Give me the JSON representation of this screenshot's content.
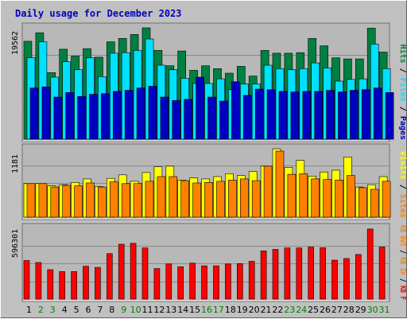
{
  "chart_data": {
    "type": "bar",
    "title": "Daily usage for December 2023",
    "categories": [
      "1",
      "2",
      "3",
      "4",
      "5",
      "6",
      "7",
      "8",
      "9",
      "10",
      "11",
      "12",
      "13",
      "14",
      "15",
      "16",
      "17",
      "18",
      "19",
      "20",
      "21",
      "22",
      "23",
      "24",
      "25",
      "26",
      "27",
      "28",
      "29",
      "30",
      "31"
    ],
    "weekend_days": [
      "2",
      "3",
      "9",
      "10",
      "16",
      "17",
      "23",
      "24",
      "30",
      "31"
    ],
    "panels": [
      {
        "name": "hits-files-pages",
        "ymax_label": "19562",
        "ymax": 19562,
        "legend": [
          "Pages",
          "Files",
          "Hits"
        ],
        "series": [
          {
            "name": "Hits",
            "color": "#008040",
            "values": [
              17200,
              18700,
              11700,
              15800,
              14600,
              15900,
              14400,
              17100,
              17700,
              18400,
              19560,
              15600,
              12900,
              15500,
              12100,
              12900,
              12400,
              11600,
              12800,
              11100,
              15600,
              15100,
              15100,
              15200,
              17700,
              16400,
              14300,
              14100,
              14100,
              19500,
              15300
            ]
          },
          {
            "name": "Files",
            "color": "#00e0ff",
            "values": [
              14300,
              17100,
              10900,
              13600,
              12200,
              14300,
              11000,
              15100,
              15200,
              15600,
              17600,
              13000,
              12200,
              10700,
              9800,
              9800,
              10600,
              8700,
              9700,
              9700,
              13000,
              12400,
              12200,
              12400,
              13400,
              12500,
              10200,
              10500,
              10600,
              16700,
              12400
            ]
          },
          {
            "name": "Pages",
            "color": "#0000c0",
            "values": [
              9000,
              9200,
              7400,
              8200,
              7500,
              7900,
              8000,
              8400,
              8600,
              9000,
              9300,
              7400,
              6800,
              7000,
              10900,
              7400,
              6700,
              10100,
              7700,
              8800,
              8700,
              8400,
              8300,
              8400,
              8400,
              8600,
              8300,
              8600,
              8700,
              9000,
              8200
            ]
          }
        ]
      },
      {
        "name": "visits-sites",
        "ymax_label": "1181",
        "ymax": 1181,
        "legend": [
          "Sites",
          "Visits"
        ],
        "series": [
          {
            "name": "Visits",
            "color": "#ffff00",
            "values": [
              580,
              580,
              540,
              560,
              600,
              660,
              530,
              670,
              730,
              620,
              770,
              870,
              880,
              640,
              680,
              660,
              700,
              750,
              720,
              790,
              880,
              1181,
              860,
              980,
              710,
              780,
              810,
              1040,
              520,
              560,
              700
            ]
          },
          {
            "name": "Sites",
            "color": "#ff8000",
            "values": [
              580,
              580,
              520,
              550,
              540,
              590,
              520,
              610,
              580,
              580,
              620,
              700,
              700,
              630,
              590,
              600,
              620,
              640,
              660,
              630,
              880,
              1140,
              740,
              750,
              660,
              650,
              640,
              720,
              510,
              480,
              620
            ]
          }
        ]
      },
      {
        "name": "kbytes",
        "ymax_label": "596301",
        "ymax": 596301,
        "legend": [
          "KB F",
          "KB In",
          "KB Out"
        ],
        "series": [
          {
            "name": "KB F",
            "color": "#ff0000",
            "values": [
              325000,
              308000,
              248000,
              232000,
              232000,
              277000,
              267000,
              383000,
              462000,
              470000,
              431000,
              257000,
              296000,
              273000,
              303000,
              280000,
              280000,
              296000,
              299000,
              318000,
              407000,
              419000,
              431000,
              431000,
              438000,
              433000,
              328000,
              342000,
              376000,
              590000,
              439000
            ]
          }
        ]
      }
    ],
    "axis_colors": {
      "weekday": "#000000",
      "weekend": "#008000"
    },
    "grid": true
  }
}
